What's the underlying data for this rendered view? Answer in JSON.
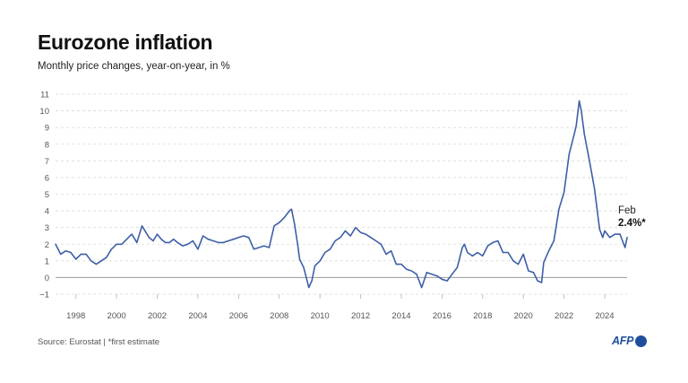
{
  "header": {
    "title": "Eurozone inflation",
    "subtitle": "Monthly price changes, year-on-year, in %"
  },
  "footer": {
    "source": "Source: Eurostat | *first estimate",
    "logo_text": "AFP"
  },
  "colors": {
    "line": "#3d5fa8",
    "grid": "#d9d9d9",
    "zero_line": "#9a9a9a",
    "logo": "#1e4f9c"
  },
  "chart_data": {
    "type": "line",
    "title": "Eurozone inflation",
    "subtitle": "Monthly price changes, year-on-year, in %",
    "xlabel": "",
    "ylabel": "",
    "xlim": [
      1997.0,
      2025.1
    ],
    "ylim": [
      -1,
      11
    ],
    "y_ticks": [
      -1,
      0,
      1,
      2,
      3,
      4,
      5,
      6,
      7,
      8,
      9,
      10,
      11
    ],
    "x_ticks": [
      1998,
      2000,
      2002,
      2004,
      2006,
      2008,
      2010,
      2012,
      2014,
      2016,
      2018,
      2020,
      2022,
      2024
    ],
    "grid": true,
    "legend": "none",
    "series": [
      {
        "name": "Eurozone inflation (%)",
        "x": [
          1997.0,
          1997.25,
          1997.5,
          1997.75,
          1998.0,
          1998.25,
          1998.5,
          1998.75,
          1999.0,
          1999.25,
          1999.5,
          1999.75,
          2000.0,
          2000.25,
          2000.5,
          2000.75,
          2001.0,
          2001.25,
          2001.4,
          2001.6,
          2001.8,
          2002.0,
          2002.2,
          2002.4,
          2002.6,
          2002.8,
          2003.0,
          2003.25,
          2003.5,
          2003.75,
          2004.0,
          2004.25,
          2004.5,
          2004.75,
          2005.0,
          2005.25,
          2005.5,
          2005.75,
          2006.0,
          2006.25,
          2006.5,
          2006.75,
          2007.0,
          2007.25,
          2007.5,
          2007.75,
          2008.0,
          2008.25,
          2008.5,
          2008.6,
          2008.75,
          2008.9,
          2009.0,
          2009.2,
          2009.35,
          2009.45,
          2009.6,
          2009.75,
          2010.0,
          2010.25,
          2010.5,
          2010.75,
          2011.0,
          2011.25,
          2011.5,
          2011.75,
          2012.0,
          2012.25,
          2012.5,
          2012.75,
          2013.0,
          2013.25,
          2013.5,
          2013.75,
          2014.0,
          2014.25,
          2014.5,
          2014.75,
          2015.0,
          2015.25,
          2015.5,
          2015.75,
          2016.0,
          2016.25,
          2016.5,
          2016.75,
          2017.0,
          2017.1,
          2017.25,
          2017.5,
          2017.75,
          2018.0,
          2018.25,
          2018.5,
          2018.75,
          2019.0,
          2019.25,
          2019.5,
          2019.75,
          2020.0,
          2020.25,
          2020.5,
          2020.7,
          2020.9,
          2021.0,
          2021.25,
          2021.5,
          2021.75,
          2022.0,
          2022.25,
          2022.5,
          2022.6,
          2022.75,
          2022.85,
          2023.0,
          2023.25,
          2023.5,
          2023.75,
          2023.9,
          2024.0,
          2024.25,
          2024.5,
          2024.75,
          2025.0,
          2025.1
        ],
        "values": [
          2.0,
          1.4,
          1.6,
          1.5,
          1.1,
          1.4,
          1.4,
          1.0,
          0.8,
          1.0,
          1.2,
          1.7,
          2.0,
          2.0,
          2.3,
          2.6,
          2.1,
          3.1,
          2.8,
          2.4,
          2.2,
          2.6,
          2.3,
          2.1,
          2.1,
          2.3,
          2.1,
          1.9,
          2.0,
          2.2,
          1.7,
          2.5,
          2.3,
          2.2,
          2.1,
          2.1,
          2.2,
          2.3,
          2.4,
          2.5,
          2.4,
          1.7,
          1.8,
          1.9,
          1.8,
          3.1,
          3.3,
          3.6,
          4.0,
          4.1,
          3.2,
          2.0,
          1.1,
          0.6,
          -0.1,
          -0.6,
          -0.2,
          0.7,
          1.0,
          1.5,
          1.7,
          2.2,
          2.4,
          2.8,
          2.5,
          3.0,
          2.7,
          2.6,
          2.4,
          2.2,
          2.0,
          1.4,
          1.6,
          0.8,
          0.8,
          0.5,
          0.4,
          0.2,
          -0.6,
          0.3,
          0.2,
          0.1,
          -0.1,
          -0.2,
          0.2,
          0.6,
          1.8,
          2.0,
          1.5,
          1.3,
          1.5,
          1.3,
          1.9,
          2.1,
          2.2,
          1.5,
          1.5,
          1.0,
          0.8,
          1.4,
          0.4,
          0.3,
          -0.2,
          -0.3,
          0.9,
          1.6,
          2.2,
          4.1,
          5.1,
          7.4,
          8.6,
          9.1,
          10.6,
          10.0,
          8.6,
          7.0,
          5.3,
          2.9,
          2.4,
          2.8,
          2.4,
          2.6,
          2.6,
          1.8,
          2.4
        ]
      }
    ],
    "annotation": {
      "month": "Feb",
      "value": "2.4%*"
    }
  }
}
